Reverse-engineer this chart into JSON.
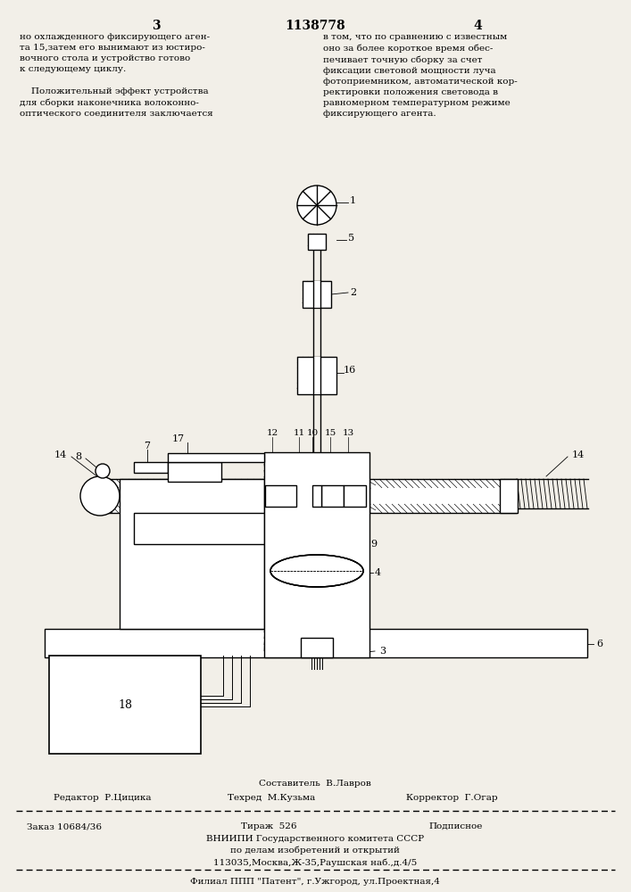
{
  "bg_color": "#f2efe8",
  "header_left_num": "3",
  "header_center_num": "1138778",
  "header_right_num": "4",
  "text_left": "но охлажденного фиксирующего аген-\nта 15,затем его вынимают из юстиро-\nвочного стола и устройство готово\nк следующему циклу.\n\n    Положительный эффект устройства\nдля сборки наконечника волоконно-\nоптического соединителя заключается",
  "text_right": "в том, что по сравнению с известным\nоно за более короткое время обес-\nпечивает точную сборку за счет\nфиксации световой мощности луча\nфотоприемником, автоматической кор-\nректировки положения световода в\nравномерном температурном режиме\nфиксирующего агента.",
  "footer_compositor": "Составитель  В.Лавров",
  "footer_editor": "Редактор  Р.Цицика",
  "footer_techred": "Техред  М.Кузьма",
  "footer_corrector": "Корректор  Г.Огар",
  "footer_order": "Заказ 10684/36",
  "footer_tirazh": "Тираж  526",
  "footer_podpisnoe": "Подписное",
  "footer_vniipи": "ВНИИПИ Государственного комитета СССР",
  "footer_dela": "по делам изобретений и открытий",
  "footer_address": "113035,Москва,Ж-35,Раушская наб.,д.4/5",
  "footer_filial": "Филиал ППП \"Патент\", г.Ужгород, ул.Проектная,4"
}
